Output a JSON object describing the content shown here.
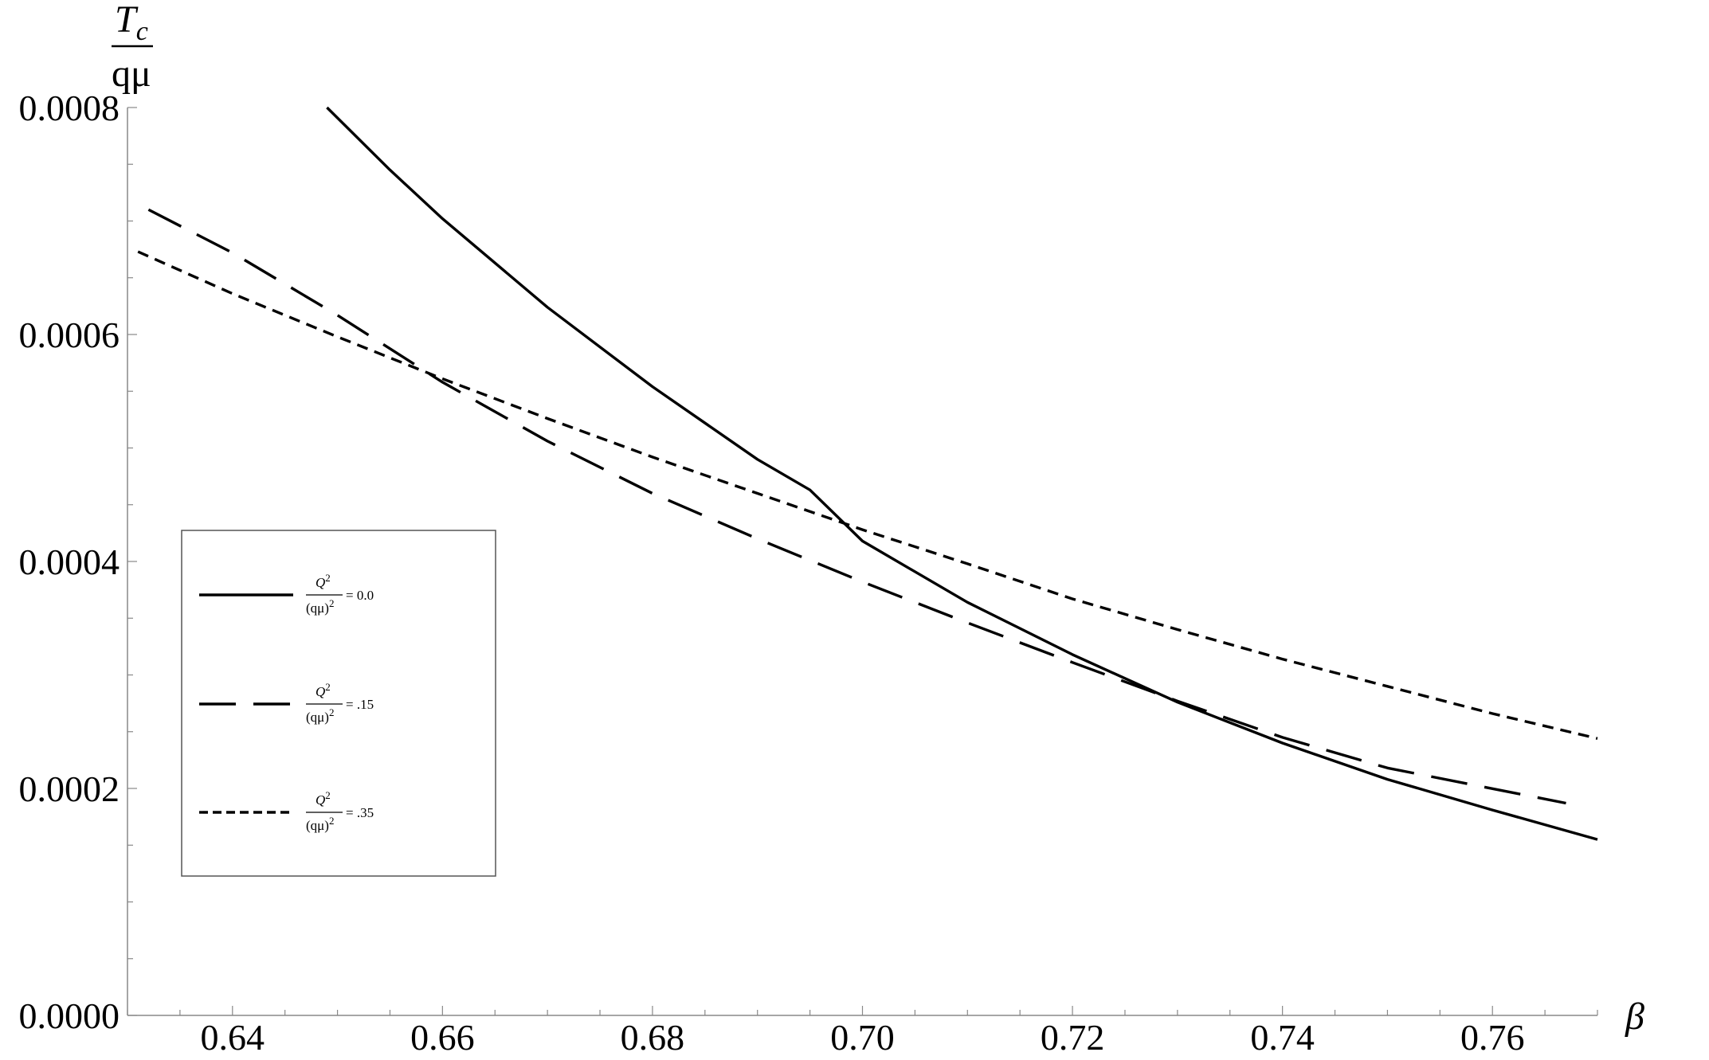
{
  "chart_data": {
    "type": "line",
    "xlabel": "β",
    "ylabel": {
      "numerator": "T",
      "subscript": "c",
      "denominator": "qμ"
    },
    "xlim": [
      0.63,
      0.77
    ],
    "ylim": [
      0.0,
      0.0008
    ],
    "x_ticks": [
      {
        "value": 0.64,
        "label": "0.64"
      },
      {
        "value": 0.66,
        "label": "0.66"
      },
      {
        "value": 0.68,
        "label": "0.68"
      },
      {
        "value": 0.7,
        "label": "0.70"
      },
      {
        "value": 0.72,
        "label": "0.72"
      },
      {
        "value": 0.74,
        "label": "0.74"
      },
      {
        "value": 0.76,
        "label": "0.76"
      }
    ],
    "y_ticks": [
      {
        "value": 0.0,
        "label": "0.0000"
      },
      {
        "value": 0.0002,
        "label": "0.0002"
      },
      {
        "value": 0.0004,
        "label": "0.0004"
      },
      {
        "value": 0.0006,
        "label": "0.0006"
      },
      {
        "value": 0.0008,
        "label": "0.0008"
      }
    ],
    "grid": false,
    "legend_position": "left-middle",
    "series": [
      {
        "name": "Q²/(qμ)² = 0.0",
        "legend_value": "= 0.0",
        "style": "solid",
        "color": "#000000",
        "x": [
          0.649,
          0.655,
          0.66,
          0.67,
          0.68,
          0.69,
          0.695,
          0.7,
          0.71,
          0.72,
          0.73,
          0.74,
          0.75,
          0.76,
          0.77
        ],
        "y": [
          0.0008,
          0.000745,
          0.000702,
          0.000624,
          0.000554,
          0.00049,
          0.000463,
          0.000418,
          0.000364,
          0.000318,
          0.000276,
          0.00024,
          0.000208,
          0.000181,
          0.000155
        ]
      },
      {
        "name": "Q²/(qμ)² = .15",
        "legend_value": "= .15",
        "style": "dashed",
        "color": "#000000",
        "x": [
          0.632,
          0.64,
          0.65,
          0.66,
          0.67,
          0.68,
          0.69,
          0.7,
          0.71,
          0.72,
          0.73,
          0.74,
          0.75,
          0.767
        ],
        "y": [
          0.00071,
          0.000672,
          0.000617,
          0.000558,
          0.000506,
          0.00046,
          0.00042,
          0.000382,
          0.000346,
          0.000311,
          0.000277,
          0.000245,
          0.000218,
          0.000187
        ]
      },
      {
        "name": "Q²/(qμ)² = .35",
        "legend_value": "= .35",
        "style": "dotted",
        "color": "#000000",
        "x": [
          0.631,
          0.64,
          0.65,
          0.66,
          0.67,
          0.68,
          0.69,
          0.7,
          0.71,
          0.72,
          0.73,
          0.74,
          0.75,
          0.76,
          0.77
        ],
        "y": [
          0.000673,
          0.000636,
          0.000598,
          0.000561,
          0.000526,
          0.000492,
          0.00046,
          0.000428,
          0.000398,
          0.000367,
          0.00034,
          0.000314,
          0.00029,
          0.000266,
          0.000244
        ]
      }
    ],
    "legend_fraction": {
      "numerator": "Q",
      "numerator_sup": "2",
      "denominator": "(qμ)",
      "denominator_sup": "2"
    }
  }
}
